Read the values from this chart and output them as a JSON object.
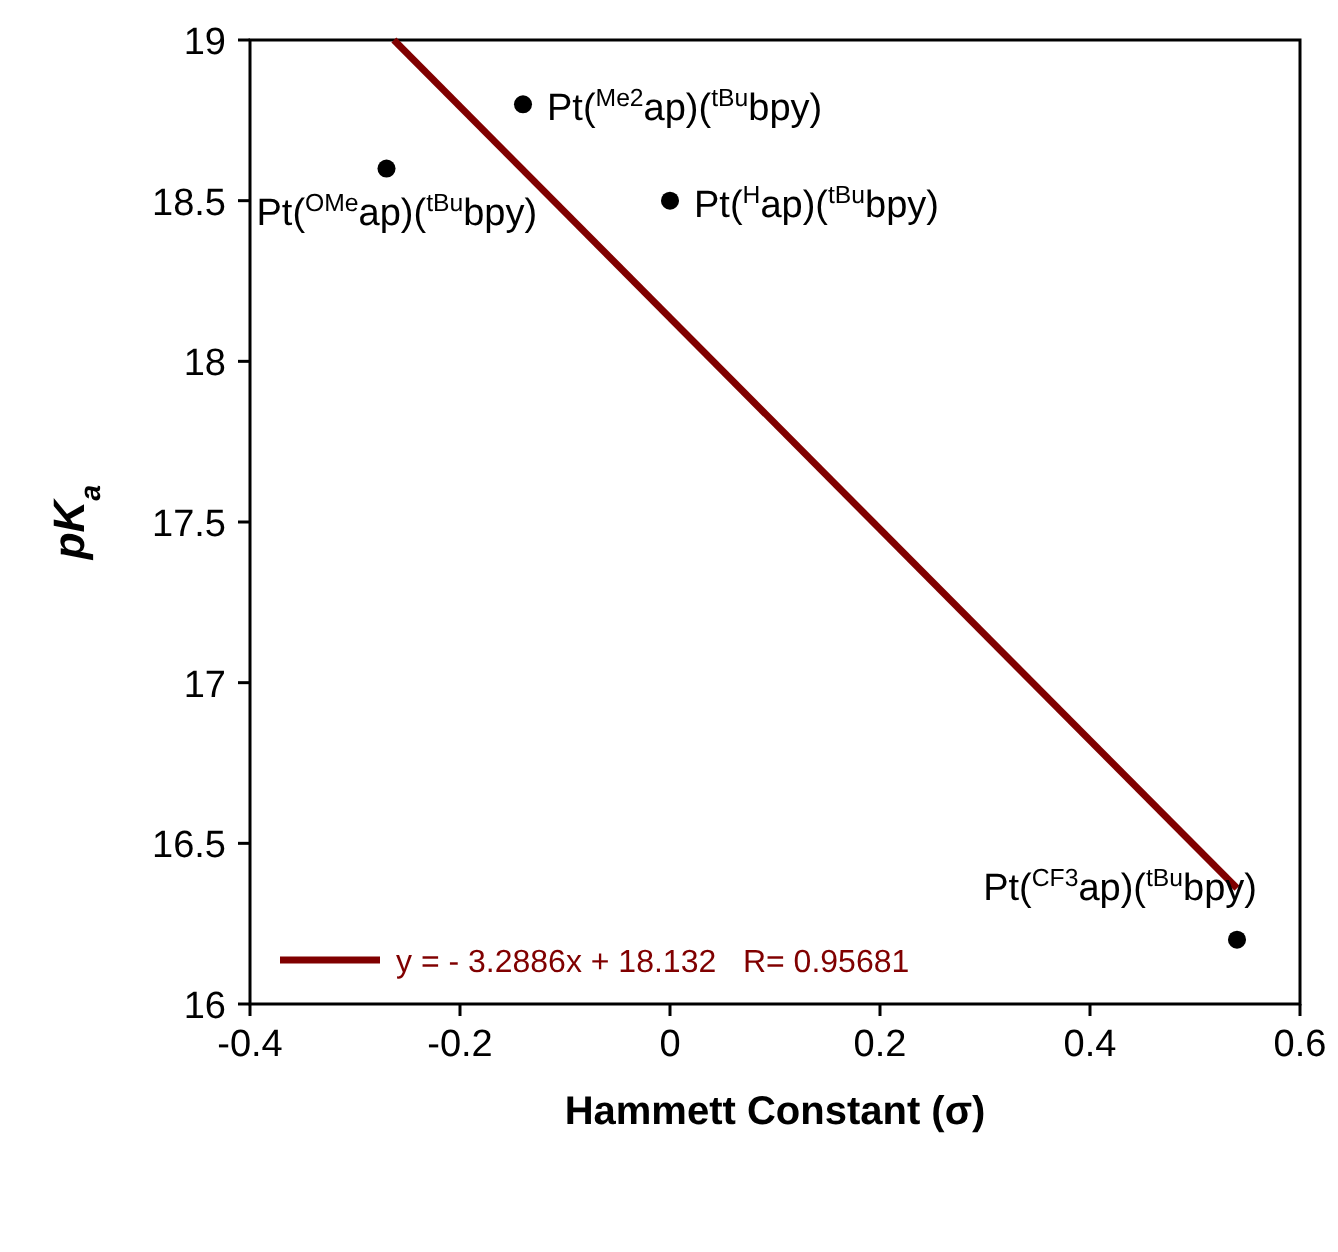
{
  "chart_data": {
    "type": "scatter",
    "xlabel": "Hammett Constant (σ)",
    "ylabel": "pK$_{a}$",
    "xlim": [
      -0.4,
      0.6
    ],
    "xticks": [
      -0.4,
      -0.2,
      {
        "value": 0,
        "label": "0"
      },
      0.2,
      0.4,
      0.6
    ],
    "ylim": [
      16,
      19
    ],
    "yticks": [
      16,
      16.5,
      17,
      17.5,
      18,
      18.5,
      19
    ],
    "grid": false,
    "legend": "bottom left",
    "marker": "circle",
    "series": [
      {
        "color": "#000000",
        "x": [
          -0.27,
          -0.14,
          0,
          0.54
        ],
        "values": [
          18.6,
          18.8,
          18.5,
          16.2
        ]
      },
      {
        "type": "line",
        "name": "y = - 3.2886x + 18.132   R= 0.95681",
        "color": "#800000",
        "x": [
          -0.263,
          0.54
        ],
        "values": [
          19.0,
          16.36
        ],
        "marker": "none",
        "line_style": "solid"
      }
    ],
    "annotations": [
      {
        "text": "Pt($^{OMe}$ap)($^{tBu}$bpy)",
        "x": -0.27,
        "y": 18.6
      },
      {
        "text": "Pt($^{Me2}$ap)($^{tBu}$bpy)",
        "x": -0.14,
        "y": 18.8
      },
      {
        "text": "Pt($^{H}$ap)($^{tBu}$bpy)",
        "x": 0,
        "y": 18.5
      },
      {
        "text": "Pt($^{CF3}$ap)($^{tBu}$bpy)",
        "x": 0.54,
        "y": 16.2
      }
    ]
  }
}
